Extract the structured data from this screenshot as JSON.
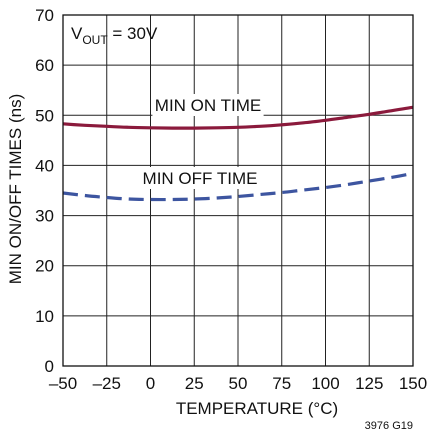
{
  "chart_data": {
    "type": "line",
    "title": "",
    "annotation_vout": {
      "main": "V",
      "sub": "OUT",
      "rest": " = 30V"
    },
    "figure_id": "3976 G19",
    "xlabel": "TEMPERATURE (°C)",
    "ylabel": "MIN ON/OFF TIMES (ns)",
    "xlim": [
      -50,
      150
    ],
    "ylim": [
      0,
      70
    ],
    "x_ticks": [
      -50,
      -25,
      0,
      25,
      50,
      75,
      100,
      125,
      150
    ],
    "x_tick_labels": [
      "–50",
      "–25",
      "0",
      "25",
      "50",
      "75",
      "100",
      "125",
      "150"
    ],
    "y_ticks": [
      0,
      10,
      20,
      30,
      40,
      50,
      60,
      70
    ],
    "y_tick_labels": [
      "0",
      "10",
      "20",
      "30",
      "40",
      "50",
      "60",
      "70"
    ],
    "grid": true,
    "series": [
      {
        "name": "MIN ON TIME",
        "color": "#8b1a3c",
        "style": "solid",
        "x": [
          -50,
          -37.5,
          -25,
          -12.5,
          0,
          12.5,
          25,
          37.5,
          50,
          62.5,
          75,
          87.5,
          100,
          112.5,
          125,
          137.5,
          150
        ],
        "y": [
          48.3,
          48.0,
          47.8,
          47.6,
          47.5,
          47.45,
          47.45,
          47.5,
          47.6,
          47.8,
          48.1,
          48.5,
          49.0,
          49.6,
          50.2,
          50.9,
          51.6
        ]
      },
      {
        "name": "MIN OFF TIME",
        "color": "#3d55a0",
        "style": "dashed",
        "x": [
          -50,
          -37.5,
          -25,
          -12.5,
          0,
          12.5,
          25,
          37.5,
          50,
          62.5,
          75,
          87.5,
          100,
          112.5,
          125,
          137.5,
          150
        ],
        "y": [
          34.5,
          34.0,
          33.6,
          33.3,
          33.2,
          33.2,
          33.3,
          33.5,
          33.8,
          34.2,
          34.6,
          35.1,
          35.6,
          36.2,
          36.9,
          37.6,
          38.4
        ]
      }
    ]
  }
}
